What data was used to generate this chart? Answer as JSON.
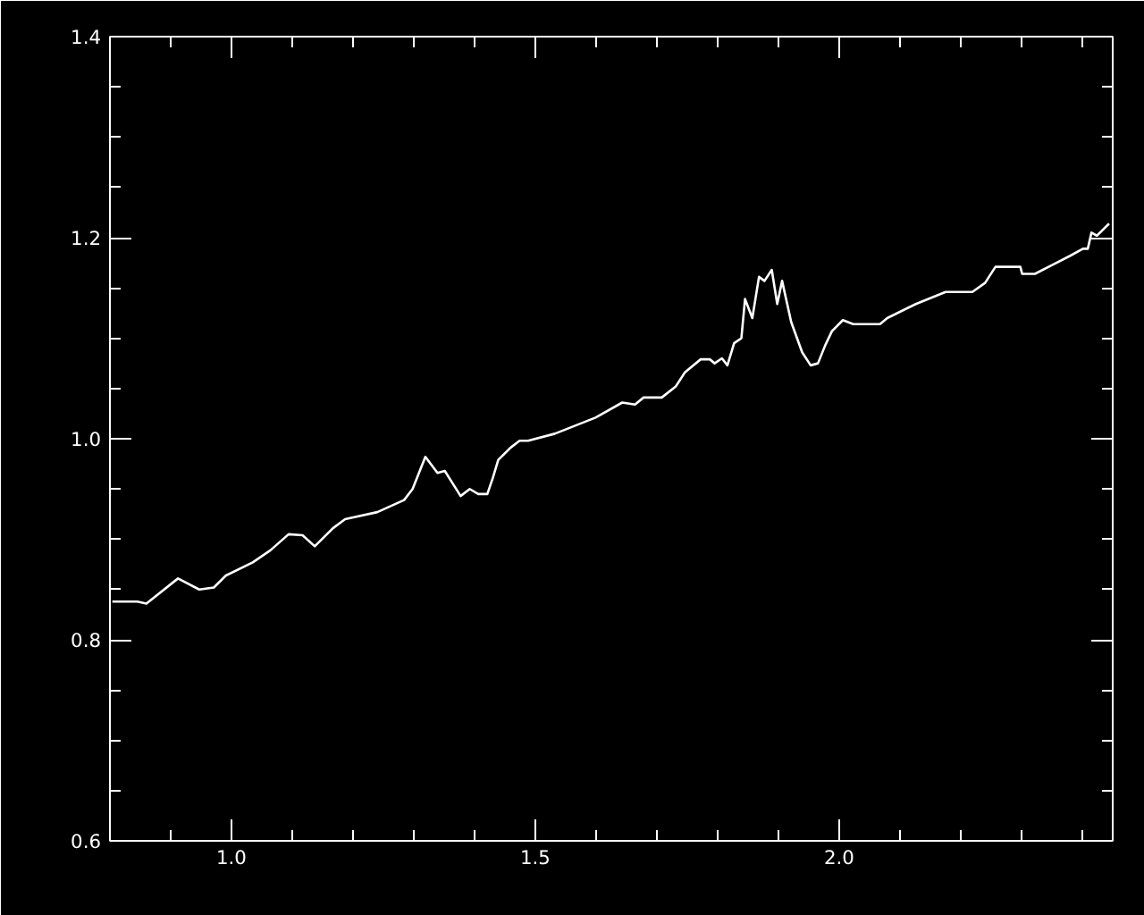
{
  "chart_data": {
    "type": "line",
    "color": "#ffffff",
    "grid": false,
    "marker": "none",
    "line_style": "solid",
    "xlim": [
      0.8,
      2.45
    ],
    "ylim": [
      0.6,
      1.4
    ],
    "xticks": [
      {
        "value": 1.0,
        "label": "1.0"
      },
      {
        "value": 1.5,
        "label": "1.5"
      },
      {
        "value": 2.0,
        "label": "2.0"
      }
    ],
    "yticks": [
      {
        "value": 0.6,
        "label": "0.6"
      },
      {
        "value": 0.8,
        "label": "0.8"
      },
      {
        "value": 1.0,
        "label": "1.0"
      },
      {
        "value": 1.2,
        "label": "1.2"
      },
      {
        "value": 1.4,
        "label": "1.4"
      }
    ],
    "x": [
      0.804,
      0.845,
      0.86,
      0.912,
      0.947,
      0.971,
      0.991,
      1.035,
      1.064,
      1.094,
      1.117,
      1.137,
      1.167,
      1.187,
      1.24,
      1.284,
      1.298,
      1.319,
      1.339,
      1.351,
      1.377,
      1.392,
      1.406,
      1.421,
      1.43,
      1.439,
      1.459,
      1.474,
      1.488,
      1.532,
      1.599,
      1.643,
      1.664,
      1.678,
      1.708,
      1.731,
      1.746,
      1.772,
      1.787,
      1.795,
      1.807,
      1.816,
      1.827,
      1.839,
      1.845,
      1.857,
      1.868,
      1.877,
      1.889,
      1.898,
      1.906,
      1.921,
      1.939,
      1.953,
      1.965,
      1.977,
      1.988,
      2.006,
      2.023,
      2.067,
      2.079,
      2.126,
      2.175,
      2.219,
      2.24,
      2.257,
      2.298,
      2.301,
      2.322,
      2.351,
      2.38,
      2.401,
      2.409,
      2.415,
      2.424,
      2.444
    ],
    "values": [
      0.838,
      0.838,
      0.836,
      0.861,
      0.85,
      0.852,
      0.864,
      0.877,
      0.889,
      0.905,
      0.904,
      0.893,
      0.911,
      0.92,
      0.927,
      0.939,
      0.95,
      0.982,
      0.966,
      0.968,
      0.943,
      0.95,
      0.945,
      0.945,
      0.961,
      0.979,
      0.991,
      0.998,
      0.998,
      1.005,
      1.021,
      1.036,
      1.034,
      1.041,
      1.041,
      1.052,
      1.066,
      1.079,
      1.079,
      1.075,
      1.08,
      1.073,
      1.095,
      1.1,
      1.139,
      1.12,
      1.161,
      1.157,
      1.168,
      1.134,
      1.157,
      1.116,
      1.086,
      1.073,
      1.075,
      1.093,
      1.107,
      1.118,
      1.114,
      1.114,
      1.12,
      1.134,
      1.146,
      1.146,
      1.155,
      1.171,
      1.171,
      1.164,
      1.164,
      1.173,
      1.182,
      1.189,
      1.189,
      1.205,
      1.202,
      1.214
    ]
  }
}
